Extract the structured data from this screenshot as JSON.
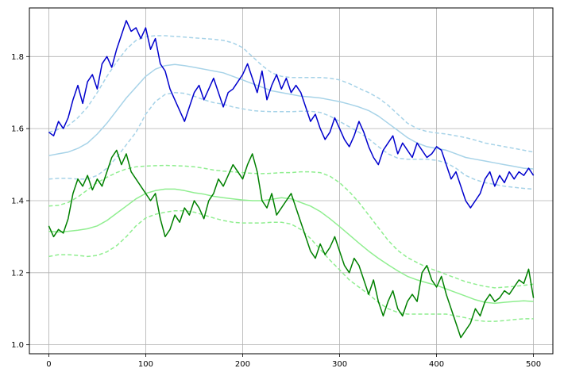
{
  "chart_data": {
    "type": "line",
    "title": "",
    "xlabel": "",
    "ylabel": "",
    "xlim": [
      -20,
      520
    ],
    "ylim": [
      0.975,
      1.935
    ],
    "grid": true,
    "x_ticks": [
      0,
      100,
      200,
      300,
      400,
      500
    ],
    "y_ticks": [
      1.0,
      1.2,
      1.4,
      1.6,
      1.8
    ],
    "x_tick_labels": [
      "0",
      "100",
      "200",
      "300",
      "400",
      "500"
    ],
    "y_tick_labels": [
      "1.0",
      "1.2",
      "1.4",
      "1.6",
      "1.8"
    ],
    "colors": {
      "blue_series": "#0000cd",
      "blue_band": "#a7d3e8",
      "green_series": "#008000",
      "green_band": "#90ee90",
      "grid": "#b0b0b0"
    },
    "series": [
      {
        "style": "solid",
        "color": "#0000cd",
        "width": 1.5,
        "x": [
          0,
          5,
          10,
          15,
          20,
          25,
          30,
          35,
          40,
          45,
          50,
          55,
          60,
          65,
          70,
          75,
          80,
          85,
          90,
          95,
          100,
          105,
          110,
          115,
          120,
          125,
          130,
          135,
          140,
          145,
          150,
          155,
          160,
          165,
          170,
          175,
          180,
          185,
          190,
          195,
          200,
          205,
          210,
          215,
          220,
          225,
          230,
          235,
          240,
          245,
          250,
          255,
          260,
          265,
          270,
          275,
          280,
          285,
          290,
          295,
          300,
          305,
          310,
          315,
          320,
          325,
          330,
          335,
          340,
          345,
          350,
          355,
          360,
          365,
          370,
          375,
          380,
          385,
          390,
          395,
          400,
          405,
          410,
          415,
          420,
          425,
          430,
          435,
          440,
          445,
          450,
          455,
          460,
          465,
          470,
          475,
          480,
          485,
          490,
          495,
          500
        ],
        "y": [
          1.59,
          1.58,
          1.62,
          1.6,
          1.63,
          1.68,
          1.72,
          1.67,
          1.73,
          1.75,
          1.71,
          1.78,
          1.8,
          1.77,
          1.82,
          1.86,
          1.9,
          1.87,
          1.88,
          1.85,
          1.88,
          1.82,
          1.85,
          1.78,
          1.76,
          1.71,
          1.68,
          1.65,
          1.62,
          1.66,
          1.7,
          1.72,
          1.68,
          1.71,
          1.74,
          1.7,
          1.66,
          1.7,
          1.71,
          1.73,
          1.75,
          1.78,
          1.74,
          1.7,
          1.76,
          1.68,
          1.72,
          1.75,
          1.71,
          1.74,
          1.7,
          1.72,
          1.7,
          1.66,
          1.62,
          1.64,
          1.6,
          1.57,
          1.59,
          1.63,
          1.6,
          1.57,
          1.55,
          1.58,
          1.62,
          1.59,
          1.55,
          1.52,
          1.5,
          1.54,
          1.56,
          1.58,
          1.53,
          1.56,
          1.54,
          1.52,
          1.56,
          1.54,
          1.52,
          1.53,
          1.55,
          1.54,
          1.5,
          1.46,
          1.48,
          1.44,
          1.4,
          1.38,
          1.4,
          1.42,
          1.46,
          1.48,
          1.44,
          1.47,
          1.45,
          1.48,
          1.46,
          1.48,
          1.47,
          1.49,
          1.47
        ]
      },
      {
        "style": "solid",
        "color": "#a7d3e8",
        "width": 1.5,
        "x": [
          0,
          10,
          20,
          30,
          40,
          50,
          60,
          70,
          80,
          90,
          100,
          110,
          120,
          130,
          140,
          150,
          160,
          170,
          180,
          190,
          200,
          210,
          220,
          230,
          240,
          250,
          260,
          270,
          280,
          290,
          300,
          310,
          320,
          330,
          340,
          350,
          360,
          370,
          380,
          390,
          400,
          410,
          420,
          430,
          440,
          450,
          460,
          470,
          480,
          490,
          500
        ],
        "y": [
          1.525,
          1.53,
          1.535,
          1.545,
          1.56,
          1.585,
          1.615,
          1.65,
          1.685,
          1.715,
          1.745,
          1.765,
          1.775,
          1.778,
          1.775,
          1.77,
          1.765,
          1.76,
          1.755,
          1.745,
          1.735,
          1.725,
          1.715,
          1.705,
          1.7,
          1.695,
          1.69,
          1.688,
          1.685,
          1.68,
          1.675,
          1.668,
          1.66,
          1.65,
          1.635,
          1.615,
          1.595,
          1.575,
          1.56,
          1.55,
          1.545,
          1.54,
          1.53,
          1.52,
          1.515,
          1.51,
          1.505,
          1.5,
          1.495,
          1.49,
          1.488
        ]
      },
      {
        "style": "dashed",
        "color": "#a7d3e8",
        "width": 1.5,
        "x": [
          0,
          10,
          20,
          30,
          40,
          50,
          60,
          70,
          80,
          90,
          100,
          110,
          120,
          130,
          140,
          150,
          160,
          170,
          180,
          190,
          200,
          210,
          220,
          230,
          240,
          250,
          260,
          270,
          280,
          290,
          300,
          310,
          320,
          330,
          340,
          350,
          360,
          370,
          380,
          390,
          400,
          410,
          420,
          430,
          440,
          450,
          460,
          470,
          480,
          490,
          500
        ],
        "y": [
          1.59,
          1.598,
          1.608,
          1.63,
          1.66,
          1.7,
          1.745,
          1.785,
          1.82,
          1.845,
          1.855,
          1.858,
          1.858,
          1.856,
          1.854,
          1.852,
          1.85,
          1.848,
          1.845,
          1.838,
          1.825,
          1.8,
          1.775,
          1.755,
          1.745,
          1.742,
          1.742,
          1.742,
          1.742,
          1.74,
          1.735,
          1.725,
          1.712,
          1.7,
          1.685,
          1.665,
          1.64,
          1.615,
          1.6,
          1.592,
          1.588,
          1.585,
          1.58,
          1.575,
          1.568,
          1.56,
          1.555,
          1.55,
          1.545,
          1.54,
          1.535
        ]
      },
      {
        "style": "dashed",
        "color": "#a7d3e8",
        "width": 1.5,
        "x": [
          0,
          10,
          20,
          30,
          40,
          50,
          60,
          70,
          80,
          90,
          100,
          110,
          120,
          130,
          140,
          150,
          160,
          170,
          180,
          190,
          200,
          210,
          220,
          230,
          240,
          250,
          260,
          270,
          280,
          290,
          300,
          310,
          320,
          330,
          340,
          350,
          360,
          370,
          380,
          390,
          400,
          410,
          420,
          430,
          440,
          450,
          460,
          470,
          480,
          490,
          500
        ],
        "y": [
          1.46,
          1.462,
          1.462,
          1.46,
          1.46,
          1.47,
          1.49,
          1.52,
          1.555,
          1.59,
          1.64,
          1.675,
          1.695,
          1.7,
          1.698,
          1.69,
          1.68,
          1.672,
          1.668,
          1.66,
          1.655,
          1.65,
          1.648,
          1.647,
          1.647,
          1.647,
          1.648,
          1.648,
          1.645,
          1.635,
          1.62,
          1.605,
          1.59,
          1.572,
          1.55,
          1.53,
          1.518,
          1.515,
          1.515,
          1.515,
          1.512,
          1.505,
          1.49,
          1.47,
          1.458,
          1.45,
          1.445,
          1.44,
          1.437,
          1.434,
          1.432
        ]
      },
      {
        "style": "solid",
        "color": "#008000",
        "width": 1.5,
        "x": [
          0,
          5,
          10,
          15,
          20,
          25,
          30,
          35,
          40,
          45,
          50,
          55,
          60,
          65,
          70,
          75,
          80,
          85,
          90,
          95,
          100,
          105,
          110,
          115,
          120,
          125,
          130,
          135,
          140,
          145,
          150,
          155,
          160,
          165,
          170,
          175,
          180,
          185,
          190,
          195,
          200,
          205,
          210,
          215,
          220,
          225,
          230,
          235,
          240,
          245,
          250,
          255,
          260,
          265,
          270,
          275,
          280,
          285,
          290,
          295,
          300,
          305,
          310,
          315,
          320,
          325,
          330,
          335,
          340,
          345,
          350,
          355,
          360,
          365,
          370,
          375,
          380,
          385,
          390,
          395,
          400,
          405,
          410,
          415,
          420,
          425,
          430,
          435,
          440,
          445,
          450,
          455,
          460,
          465,
          470,
          475,
          480,
          485,
          490,
          495,
          500
        ],
        "y": [
          1.33,
          1.3,
          1.32,
          1.31,
          1.35,
          1.42,
          1.46,
          1.44,
          1.47,
          1.43,
          1.46,
          1.44,
          1.48,
          1.52,
          1.54,
          1.5,
          1.53,
          1.48,
          1.46,
          1.44,
          1.42,
          1.4,
          1.42,
          1.35,
          1.3,
          1.32,
          1.36,
          1.34,
          1.38,
          1.36,
          1.4,
          1.38,
          1.35,
          1.4,
          1.42,
          1.46,
          1.44,
          1.47,
          1.5,
          1.48,
          1.46,
          1.5,
          1.53,
          1.48,
          1.4,
          1.38,
          1.42,
          1.36,
          1.38,
          1.4,
          1.42,
          1.38,
          1.34,
          1.3,
          1.26,
          1.24,
          1.28,
          1.25,
          1.27,
          1.3,
          1.26,
          1.22,
          1.2,
          1.24,
          1.22,
          1.18,
          1.14,
          1.18,
          1.12,
          1.08,
          1.12,
          1.15,
          1.1,
          1.08,
          1.12,
          1.14,
          1.12,
          1.2,
          1.22,
          1.18,
          1.16,
          1.19,
          1.14,
          1.1,
          1.06,
          1.02,
          1.04,
          1.06,
          1.1,
          1.08,
          1.12,
          1.14,
          1.12,
          1.13,
          1.15,
          1.14,
          1.16,
          1.18,
          1.17,
          1.21,
          1.13
        ]
      },
      {
        "style": "solid",
        "color": "#90ee90",
        "width": 1.5,
        "x": [
          0,
          10,
          20,
          30,
          40,
          50,
          60,
          70,
          80,
          90,
          100,
          110,
          120,
          130,
          140,
          150,
          160,
          170,
          180,
          190,
          200,
          210,
          220,
          230,
          240,
          250,
          260,
          270,
          280,
          290,
          300,
          310,
          320,
          330,
          340,
          350,
          360,
          370,
          380,
          390,
          400,
          410,
          420,
          430,
          440,
          450,
          460,
          470,
          480,
          490,
          500
        ],
        "y": [
          1.315,
          1.313,
          1.315,
          1.318,
          1.322,
          1.33,
          1.345,
          1.365,
          1.385,
          1.405,
          1.42,
          1.428,
          1.432,
          1.432,
          1.428,
          1.422,
          1.418,
          1.412,
          1.408,
          1.405,
          1.402,
          1.4,
          1.4,
          1.404,
          1.408,
          1.405,
          1.395,
          1.385,
          1.37,
          1.35,
          1.328,
          1.305,
          1.282,
          1.26,
          1.24,
          1.222,
          1.205,
          1.19,
          1.18,
          1.172,
          1.165,
          1.155,
          1.145,
          1.135,
          1.125,
          1.118,
          1.115,
          1.118,
          1.12,
          1.122,
          1.12
        ]
      },
      {
        "style": "dashed",
        "color": "#90ee90",
        "width": 1.5,
        "x": [
          0,
          10,
          20,
          30,
          40,
          50,
          60,
          70,
          80,
          90,
          100,
          110,
          120,
          130,
          140,
          150,
          160,
          170,
          180,
          190,
          200,
          210,
          220,
          230,
          240,
          250,
          260,
          270,
          280,
          290,
          300,
          310,
          320,
          330,
          340,
          350,
          360,
          370,
          380,
          390,
          400,
          410,
          420,
          430,
          440,
          450,
          460,
          470,
          480,
          490,
          500
        ],
        "y": [
          1.385,
          1.387,
          1.395,
          1.41,
          1.43,
          1.45,
          1.465,
          1.478,
          1.488,
          1.494,
          1.496,
          1.497,
          1.498,
          1.497,
          1.496,
          1.494,
          1.49,
          1.485,
          1.482,
          1.48,
          1.478,
          1.476,
          1.475,
          1.476,
          1.478,
          1.478,
          1.48,
          1.48,
          1.478,
          1.468,
          1.45,
          1.425,
          1.395,
          1.36,
          1.325,
          1.29,
          1.262,
          1.242,
          1.228,
          1.215,
          1.205,
          1.195,
          1.185,
          1.175,
          1.168,
          1.162,
          1.158,
          1.16,
          1.162,
          1.165,
          1.168
        ]
      },
      {
        "style": "dashed",
        "color": "#90ee90",
        "width": 1.5,
        "x": [
          0,
          10,
          20,
          30,
          40,
          50,
          60,
          70,
          80,
          90,
          100,
          110,
          120,
          130,
          140,
          150,
          160,
          170,
          180,
          190,
          200,
          210,
          220,
          230,
          240,
          250,
          260,
          270,
          280,
          290,
          300,
          310,
          320,
          330,
          340,
          350,
          360,
          370,
          380,
          390,
          400,
          410,
          420,
          430,
          440,
          450,
          460,
          470,
          480,
          490,
          500
        ],
        "y": [
          1.245,
          1.25,
          1.25,
          1.248,
          1.245,
          1.248,
          1.258,
          1.275,
          1.3,
          1.33,
          1.352,
          1.362,
          1.368,
          1.372,
          1.372,
          1.368,
          1.36,
          1.352,
          1.345,
          1.34,
          1.338,
          1.338,
          1.338,
          1.34,
          1.34,
          1.335,
          1.32,
          1.295,
          1.265,
          1.235,
          1.208,
          1.18,
          1.16,
          1.14,
          1.118,
          1.1,
          1.09,
          1.085,
          1.085,
          1.085,
          1.085,
          1.085,
          1.08,
          1.075,
          1.068,
          1.065,
          1.065,
          1.067,
          1.07,
          1.072,
          1.072
        ]
      }
    ]
  }
}
